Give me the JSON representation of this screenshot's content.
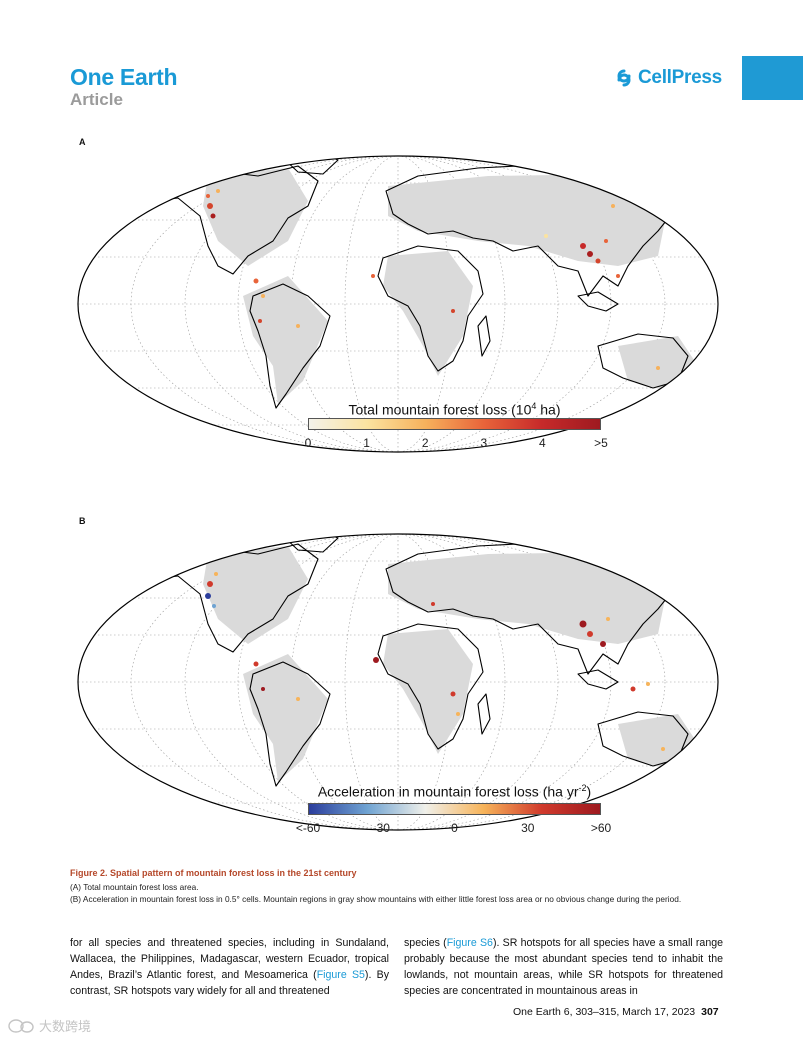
{
  "header": {
    "journal": "One Earth",
    "article_type": "Article",
    "publisher": "CellPress",
    "publisher_icon": "cellpress-logo-icon",
    "accent_color": "#1a9ad6"
  },
  "figure": {
    "panel_a": {
      "label": "A",
      "colorbar_title_prefix": "Total mountain forest loss (10",
      "colorbar_title_sup": "4",
      "colorbar_title_suffix": " ha)",
      "ticks": [
        "0",
        "1",
        "2",
        "3",
        "4",
        ">5"
      ],
      "colors": [
        "#f4f2ea",
        "#fbe3a0",
        "#f6b15c",
        "#e8643a",
        "#c72a2a",
        "#9e1a20"
      ]
    },
    "panel_b": {
      "label": "B",
      "colorbar_title_prefix": "Acceleration in mountain forest loss (ha yr",
      "colorbar_title_sup": "-2",
      "colorbar_title_suffix": ")",
      "ticks": [
        "<-60",
        "-30",
        "0",
        "30",
        ">60"
      ],
      "colors": [
        "#2b3d9c",
        "#6fa3d2",
        "#f0f0ea",
        "#f7b45a",
        "#d03a2c",
        "#9e1a20"
      ]
    },
    "caption": {
      "title": "Figure 2. Spatial pattern of mountain forest loss in the 21st century",
      "line_a": "(A) Total mountain forest loss area.",
      "line_b": "(B) Acceleration in mountain forest loss in 0.5° cells. Mountain regions in gray show mountains with either little forest loss area or no obvious change during the period."
    }
  },
  "body": {
    "left": {
      "part1": "for all species and threatened species, including in Sundaland, Wallacea, the Philippines, Madagascar, western Ecuador, tropical Andes, Brazil’s Atlantic forest, and Mesoamerica (",
      "link1": "Figure S5",
      "part2": "). By contrast, SR hotspots vary widely for all and threatened"
    },
    "right": {
      "part1": "species (",
      "link1": "Figure S6",
      "part2": "). SR hotspots for all species have a small range probably because the most abundant species tend to inhabit the lowlands, not mountain areas, while SR hotspots for threatened species are concentrated in mountainous areas in"
    }
  },
  "footer": {
    "citation": "One Earth 6, 303–315, March 17, 2023",
    "page": "307"
  },
  "watermark": {
    "text": "大数跨境",
    "icon": "wechat-logo-icon"
  }
}
